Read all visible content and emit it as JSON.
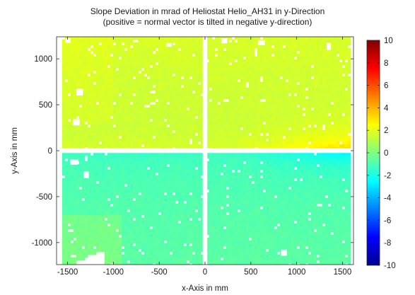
{
  "chart_data": {
    "type": "heatmap",
    "title_line1": "Slope Deviation in mrad of Heliostat Helio_AH31 in y-Direction",
    "title_line2": "(positive = normal vector is tilted in negative y-direction)",
    "xlabel": "x-Axis in mm",
    "ylabel": "y-Axis in mm",
    "xlim": [
      -1620,
      1620
    ],
    "ylim": [
      -1240,
      1240
    ],
    "x_ticks": [
      -1500,
      -1000,
      -500,
      0,
      500,
      1000,
      1500
    ],
    "x_tick_labels": [
      "-1500",
      "-1000",
      "-500",
      "0",
      "500",
      "1000",
      "1500"
    ],
    "y_ticks": [
      1000,
      500,
      0,
      -500,
      -1000
    ],
    "y_tick_labels": [
      "1000",
      "500",
      "0",
      "-500",
      "-1000"
    ],
    "colorbar": {
      "colormap": "jet",
      "range": [
        -10,
        10
      ],
      "ticks": [
        10,
        8,
        6,
        4,
        2,
        0,
        -2,
        -4,
        -6,
        -8,
        -10
      ],
      "tick_labels": [
        "10",
        "8",
        "6",
        "4",
        "2",
        "0",
        "-2",
        "-4",
        "-6",
        "-8",
        "-10"
      ]
    },
    "surface_pattern": {
      "upper_half_value_range_mrad": [
        1,
        2.5
      ],
      "upper_half_near_center_gap_max_mrad": 3.5,
      "lower_half_value_range_mrad": [
        -1.5,
        0
      ],
      "lower_half_near_center_gap_min_mrad": -2.8,
      "gap_x_mm": 0,
      "gap_y_mm": 0
    },
    "grid": false,
    "legend": "colorbar-right"
  }
}
